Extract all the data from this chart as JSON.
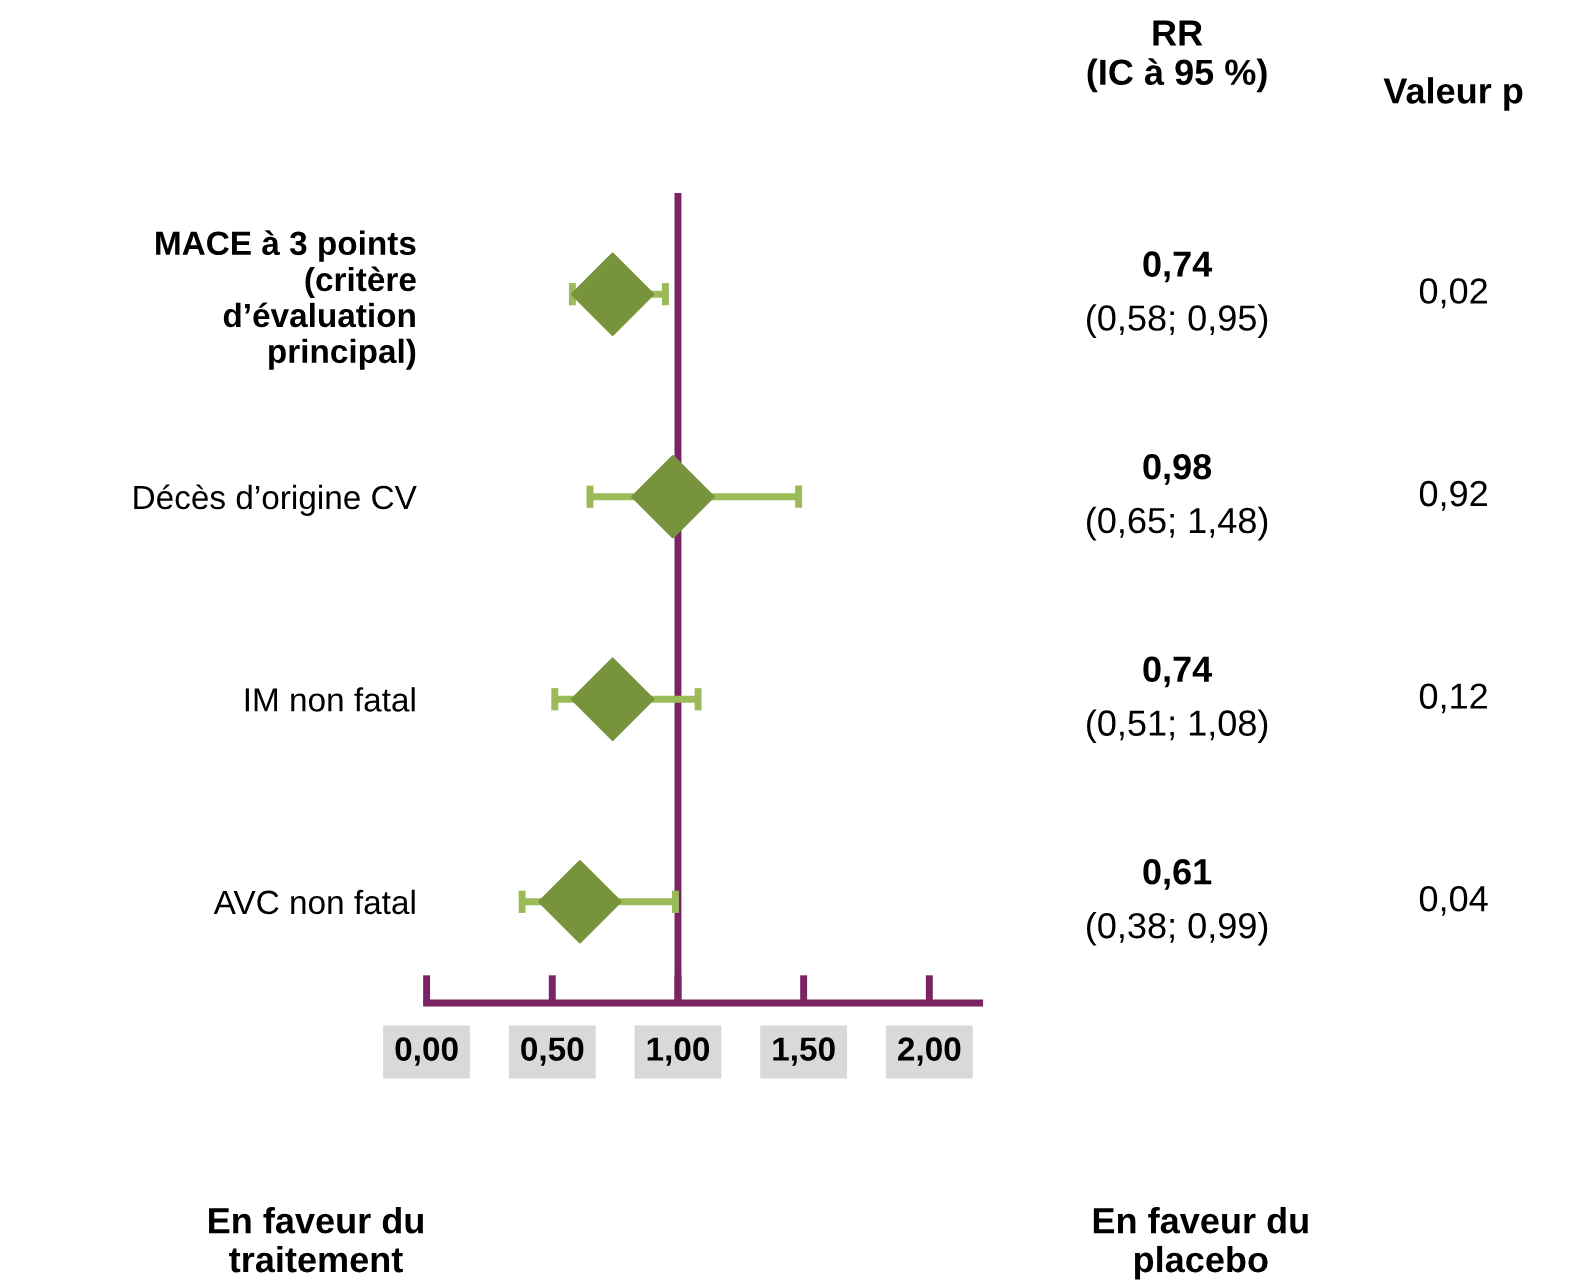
{
  "chart_data": {
    "type": "scatter",
    "orientation": "horizontal",
    "categories": [
      "MACE à 3 points\n(critère\nd’évaluation\nprincipal)",
      "Décès d’origine CV",
      "IM non fatal",
      "AVC non fatal"
    ],
    "series": [
      {
        "color": "#77933c",
        "values": [
          0.74,
          0.98,
          0.74,
          0.61
        ],
        "errors": [
          [
            0.58,
            0.95
          ],
          [
            0.65,
            1.48
          ],
          [
            0.51,
            1.08
          ],
          [
            0.38,
            0.99
          ]
        ]
      }
    ],
    "marker": "diamond",
    "xlim": [
      0,
      2.2
    ],
    "xticks": [
      {
        "value": 0,
        "label": "0,00"
      },
      {
        "value": 0.5,
        "label": "0,50"
      },
      {
        "value": 1,
        "label": "1,00"
      },
      {
        "value": 1.5,
        "label": "1,50"
      },
      {
        "value": 2,
        "label": "2,00"
      }
    ],
    "ref_lines": [
      {
        "axis": "x",
        "value": 1,
        "label": null,
        "color": "#7b2463"
      }
    ],
    "grid": false,
    "annotations": [
      "RR\n(IC à 95 %)",
      "Valeur p",
      "0,74",
      "0,98",
      "0,74",
      "0,61",
      "(0,58; 0,95)",
      "(0,65; 1,48)",
      "(0,51; 1,08)",
      "(0,38; 0,99)",
      "0,02",
      "0,92",
      "0,12",
      "0,04",
      "En faveur du\ntraitement",
      "En faveur du\nplacebo"
    ]
  }
}
